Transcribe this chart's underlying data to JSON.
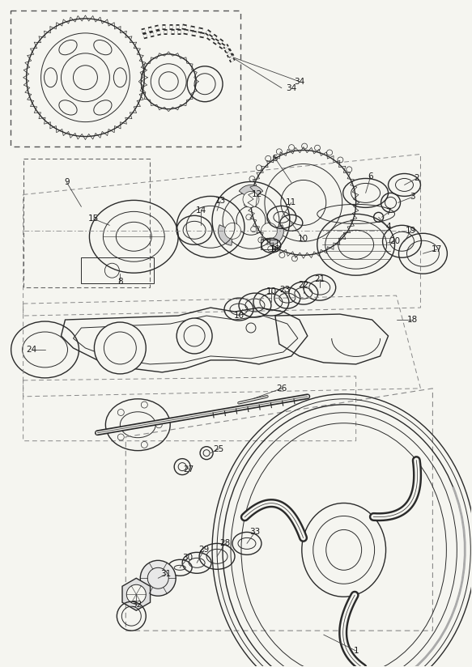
{
  "bg_color": "#f5f5f0",
  "line_color": "#2a2a2a",
  "label_color": "#1a1a1a",
  "fig_width": 5.83,
  "fig_height": 8.24,
  "dpi": 100
}
